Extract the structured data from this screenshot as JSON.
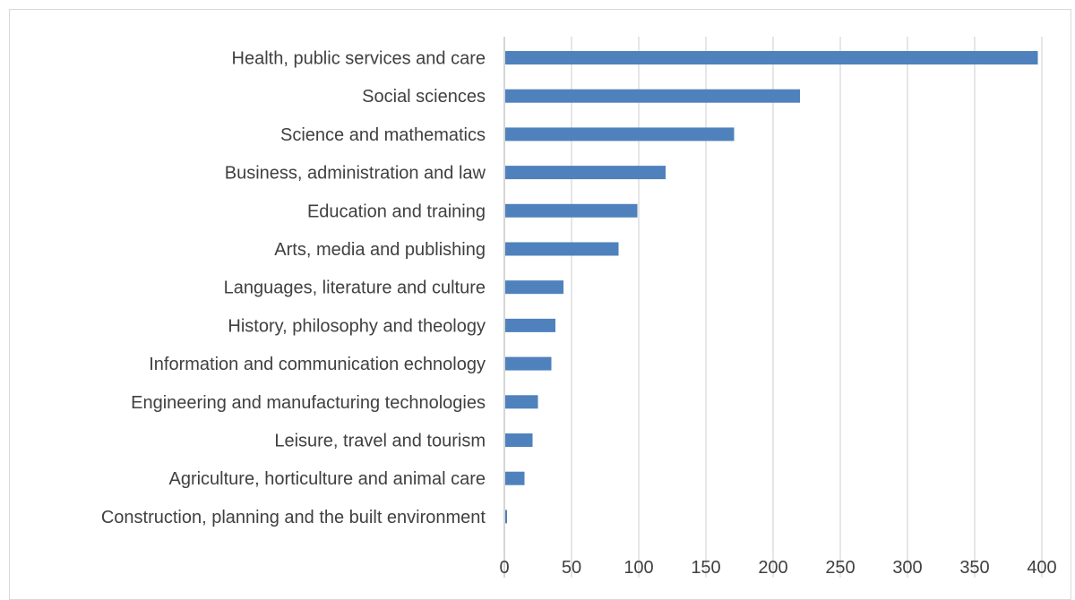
{
  "chart_data": {
    "type": "bar",
    "orientation": "horizontal",
    "title": "",
    "xlabel": "",
    "ylabel": "",
    "categories": [
      "Health, public services and care",
      "Social sciences",
      "Science and mathematics",
      "Business, administration and law",
      "Education and training",
      "Arts, media and publishing",
      "Languages, literature and culture",
      "History, philosophy and theology",
      "Information and communication echnology",
      "Engineering and manufacturing technologies",
      "Leisure, travel and tourism",
      "Agriculture, horticulture and animal care",
      "Construction, planning and the built environment"
    ],
    "values": [
      397,
      220,
      171,
      120,
      99,
      85,
      44,
      38,
      35,
      25,
      21,
      15,
      2
    ],
    "xlim": [
      0,
      400
    ],
    "xticks": [
      "0",
      "50",
      "100",
      "150",
      "200",
      "250",
      "300",
      "350",
      "400"
    ],
    "grid": true,
    "legend": "none",
    "bar_color": "#4f81bd",
    "grid_color": "#d9d9d9",
    "text_color": "#404040"
  }
}
